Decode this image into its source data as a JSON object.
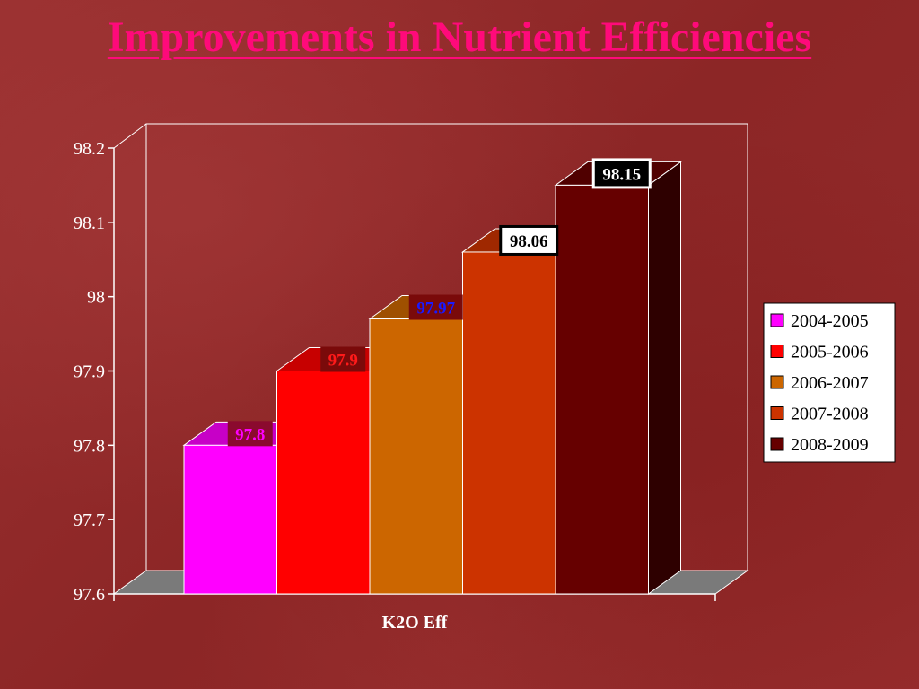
{
  "title": "Improvements in Nutrient Efficiencies",
  "chart_data": {
    "type": "bar",
    "categories": [
      "K2O Eff"
    ],
    "series": [
      {
        "name": "2004-2005",
        "values": [
          97.8
        ],
        "color": "#ff00ff",
        "label_color": "#ff00ff",
        "label_bg": "#8b0a2e"
      },
      {
        "name": "2005-2006",
        "values": [
          97.9
        ],
        "color": "#ff0000",
        "label_color": "#ff1a1a",
        "label_bg": "#7a0a0a"
      },
      {
        "name": "2006-2007",
        "values": [
          97.97
        ],
        "color": "#cc6600",
        "label_color": "#1a1aff",
        "label_bg": "#7a0a0a"
      },
      {
        "name": "2007-2008",
        "values": [
          98.06
        ],
        "color": "#cc3300",
        "label_color": "#000000",
        "label_bg": "#ffffff"
      },
      {
        "name": "2008-2009",
        "values": [
          98.15
        ],
        "color": "#660000",
        "label_color": "#ffffff",
        "label_bg": "#000000"
      }
    ],
    "data_labels": [
      "97.8",
      "97.9",
      "97.97",
      "98.06",
      "98.15"
    ],
    "yticks": [
      "97.6",
      "97.7",
      "97.8",
      "97.9",
      "98",
      "98.1",
      "98.2"
    ],
    "ylim": [
      97.6,
      98.2
    ],
    "title": "",
    "xlabel": "",
    "ylabel": "",
    "legend": "right",
    "grid": false
  }
}
